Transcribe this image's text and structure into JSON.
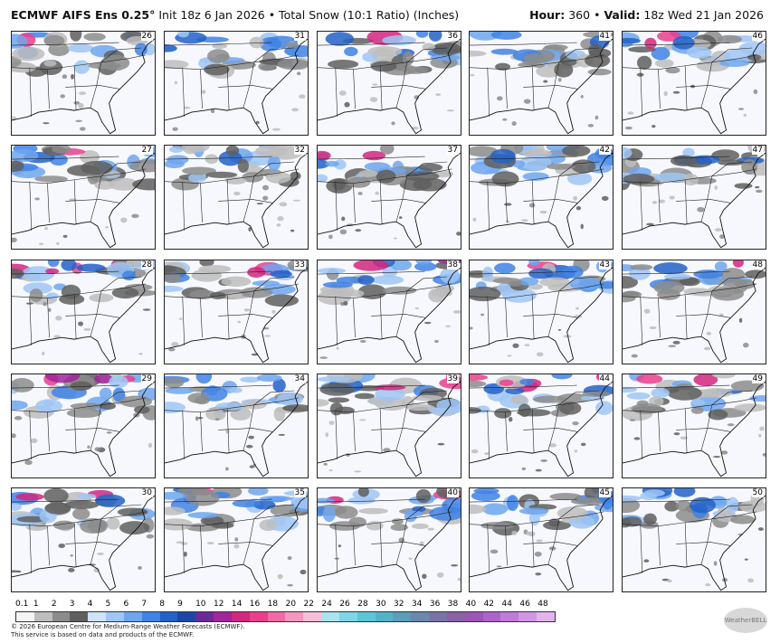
{
  "header": {
    "title": "ECMWF AIFS Ens 0.25°",
    "subtitle": "Init 18z 6 Jan 2026 • Total Snow (10:1 Ratio) (Inches)",
    "right": [
      {
        "text": "Hour:",
        "bold": true
      },
      {
        "text": "360",
        "bold": false
      },
      {
        "text": "•",
        "bold": false
      },
      {
        "text": "Valid:",
        "bold": true
      },
      {
        "text": "18z Wed 21 Jan 2026",
        "bold": false
      }
    ]
  },
  "panels": [
    [
      26,
      27,
      28,
      29,
      30
    ],
    [
      31,
      32,
      33,
      34,
      35
    ],
    [
      36,
      37,
      38,
      39,
      40
    ],
    [
      41,
      42,
      43,
      44,
      45
    ],
    [
      46,
      47,
      48,
      49,
      50
    ]
  ],
  "colorbar": {
    "labels": [
      0.1,
      1,
      2,
      3,
      4,
      5,
      6,
      7,
      8,
      9,
      10,
      12,
      14,
      16,
      18,
      20,
      22,
      24,
      26,
      28,
      30,
      32,
      34,
      36,
      38,
      40,
      42,
      44,
      46,
      48
    ],
    "colors": [
      "#f4f4f4",
      "#bdbdbd",
      "#8c8c8c",
      "#5f5f5f",
      "#cfe3fb",
      "#9fc6f5",
      "#6ea6ee",
      "#3f83e4",
      "#2362c8",
      "#1c47a6",
      "#6a2b97",
      "#a0269a",
      "#d2277f",
      "#ea3f8c",
      "#f06aa5",
      "#f496bf",
      "#f7bfd6",
      "#a9e4f0",
      "#7fd6e6",
      "#5cc6d8",
      "#53b3c6",
      "#5c9db8",
      "#6b88ad",
      "#7a74a6",
      "#8a61a2",
      "#9b57b7",
      "#ae63cc",
      "#c07ad8",
      "#d296e2",
      "#e3b4ec"
    ]
  },
  "footer": {
    "line1": "© 2026 European Centre for Medium-Range Weather Forecasts (ECMWF).",
    "line2": "This service is based on data and products of the ECMWF.",
    "logo": "WeatherBELL"
  }
}
